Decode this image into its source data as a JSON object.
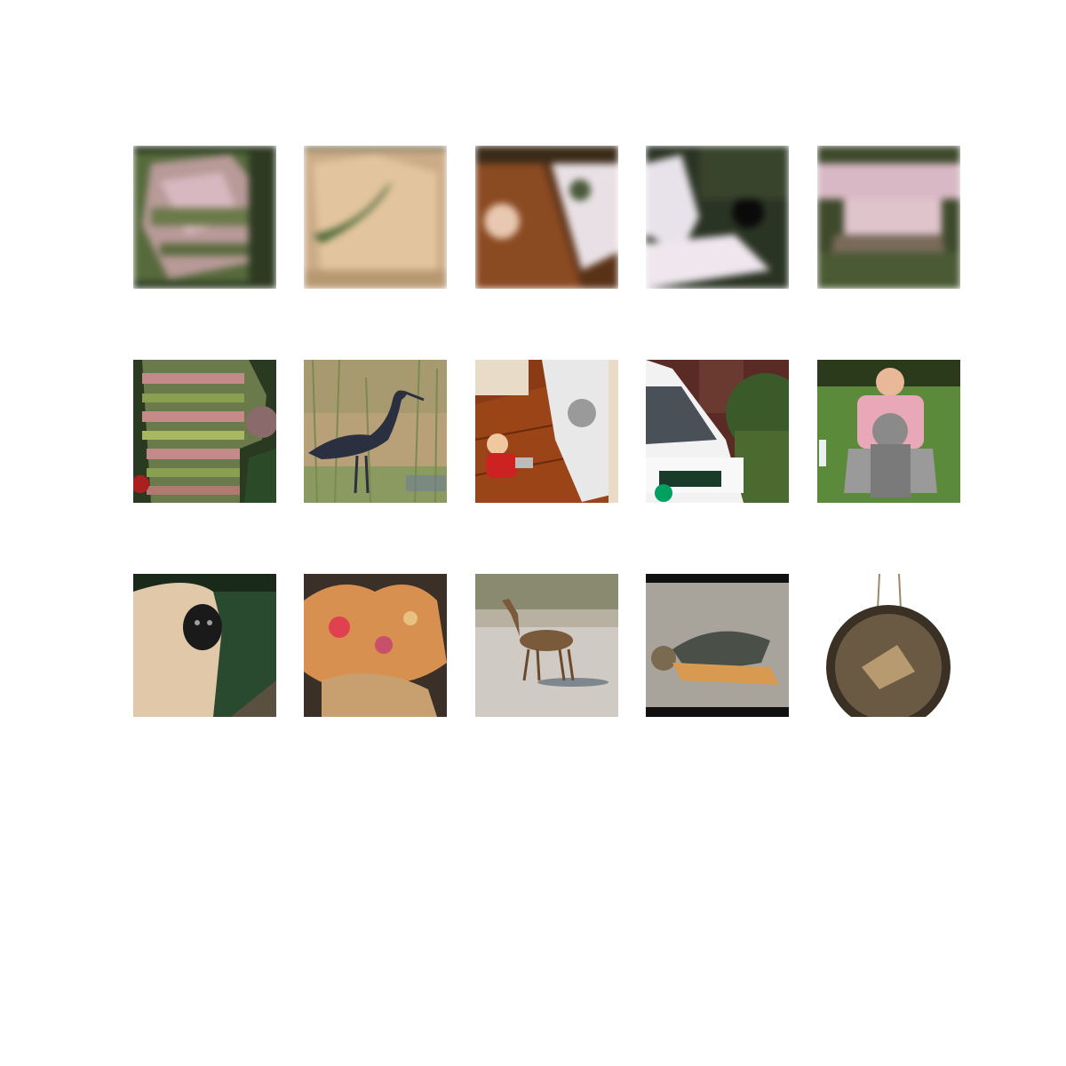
{
  "figure": {
    "rows": [
      {
        "row_name": "reconstructed-row",
        "tiles": [
          {
            "subject": "blurry-knit-reconstruction",
            "palette": [
              "#3d4a2a",
              "#c9a9a9",
              "#6b7a4c"
            ]
          },
          {
            "subject": "blurry-bird-reconstruction",
            "palette": [
              "#d8b890",
              "#4e6a3a",
              "#b89870"
            ]
          },
          {
            "subject": "blurry-room-reconstruction",
            "palette": [
              "#8a4a22",
              "#e8e0e4",
              "#3a2a18"
            ]
          },
          {
            "subject": "blurry-van-reconstruction",
            "palette": [
              "#2a3424",
              "#efe6ee",
              "#4c5e34"
            ]
          },
          {
            "subject": "blurry-dog-reconstruction",
            "palette": [
              "#3e4a2c",
              "#e0c4cc",
              "#7a6a5a"
            ]
          }
        ]
      },
      {
        "row_name": "original-row-1",
        "tiles": [
          {
            "subject": "knitted-mitten",
            "palette": [
              "#5a6a3a",
              "#c48a8a",
              "#2a3a20"
            ]
          },
          {
            "subject": "heron-in-grass",
            "palette": [
              "#b8a078",
              "#2a3040",
              "#8a9a60"
            ]
          },
          {
            "subject": "baby-on-floor",
            "palette": [
              "#8a3a14",
              "#e8e8e8",
              "#cc2222"
            ]
          },
          {
            "subject": "white-van",
            "palette": [
              "#f2f2f2",
              "#3a5a2a",
              "#00a060"
            ]
          },
          {
            "subject": "woman-with-dog",
            "palette": [
              "#5a8a3a",
              "#e8a8b8",
              "#8a8a8a"
            ]
          }
        ]
      },
      {
        "row_name": "original-row-2",
        "tiles": [
          {
            "subject": "gibbon",
            "palette": [
              "#e0c8a8",
              "#2a4a30",
              "#1a1a1a"
            ]
          },
          {
            "subject": "coral",
            "palette": [
              "#d89050",
              "#e04050",
              "#3a3028"
            ]
          },
          {
            "subject": "gazelle",
            "palette": [
              "#cfcac4",
              "#7a5a3a",
              "#4a5a3a"
            ]
          },
          {
            "subject": "snapping-turtle",
            "palette": [
              "#a8a49c",
              "#4a5048",
              "#d89a50"
            ]
          },
          {
            "subject": "gong",
            "palette": [
              "#6a5a44",
              "#3a3024",
              "#b89a70"
            ]
          }
        ]
      }
    ]
  }
}
